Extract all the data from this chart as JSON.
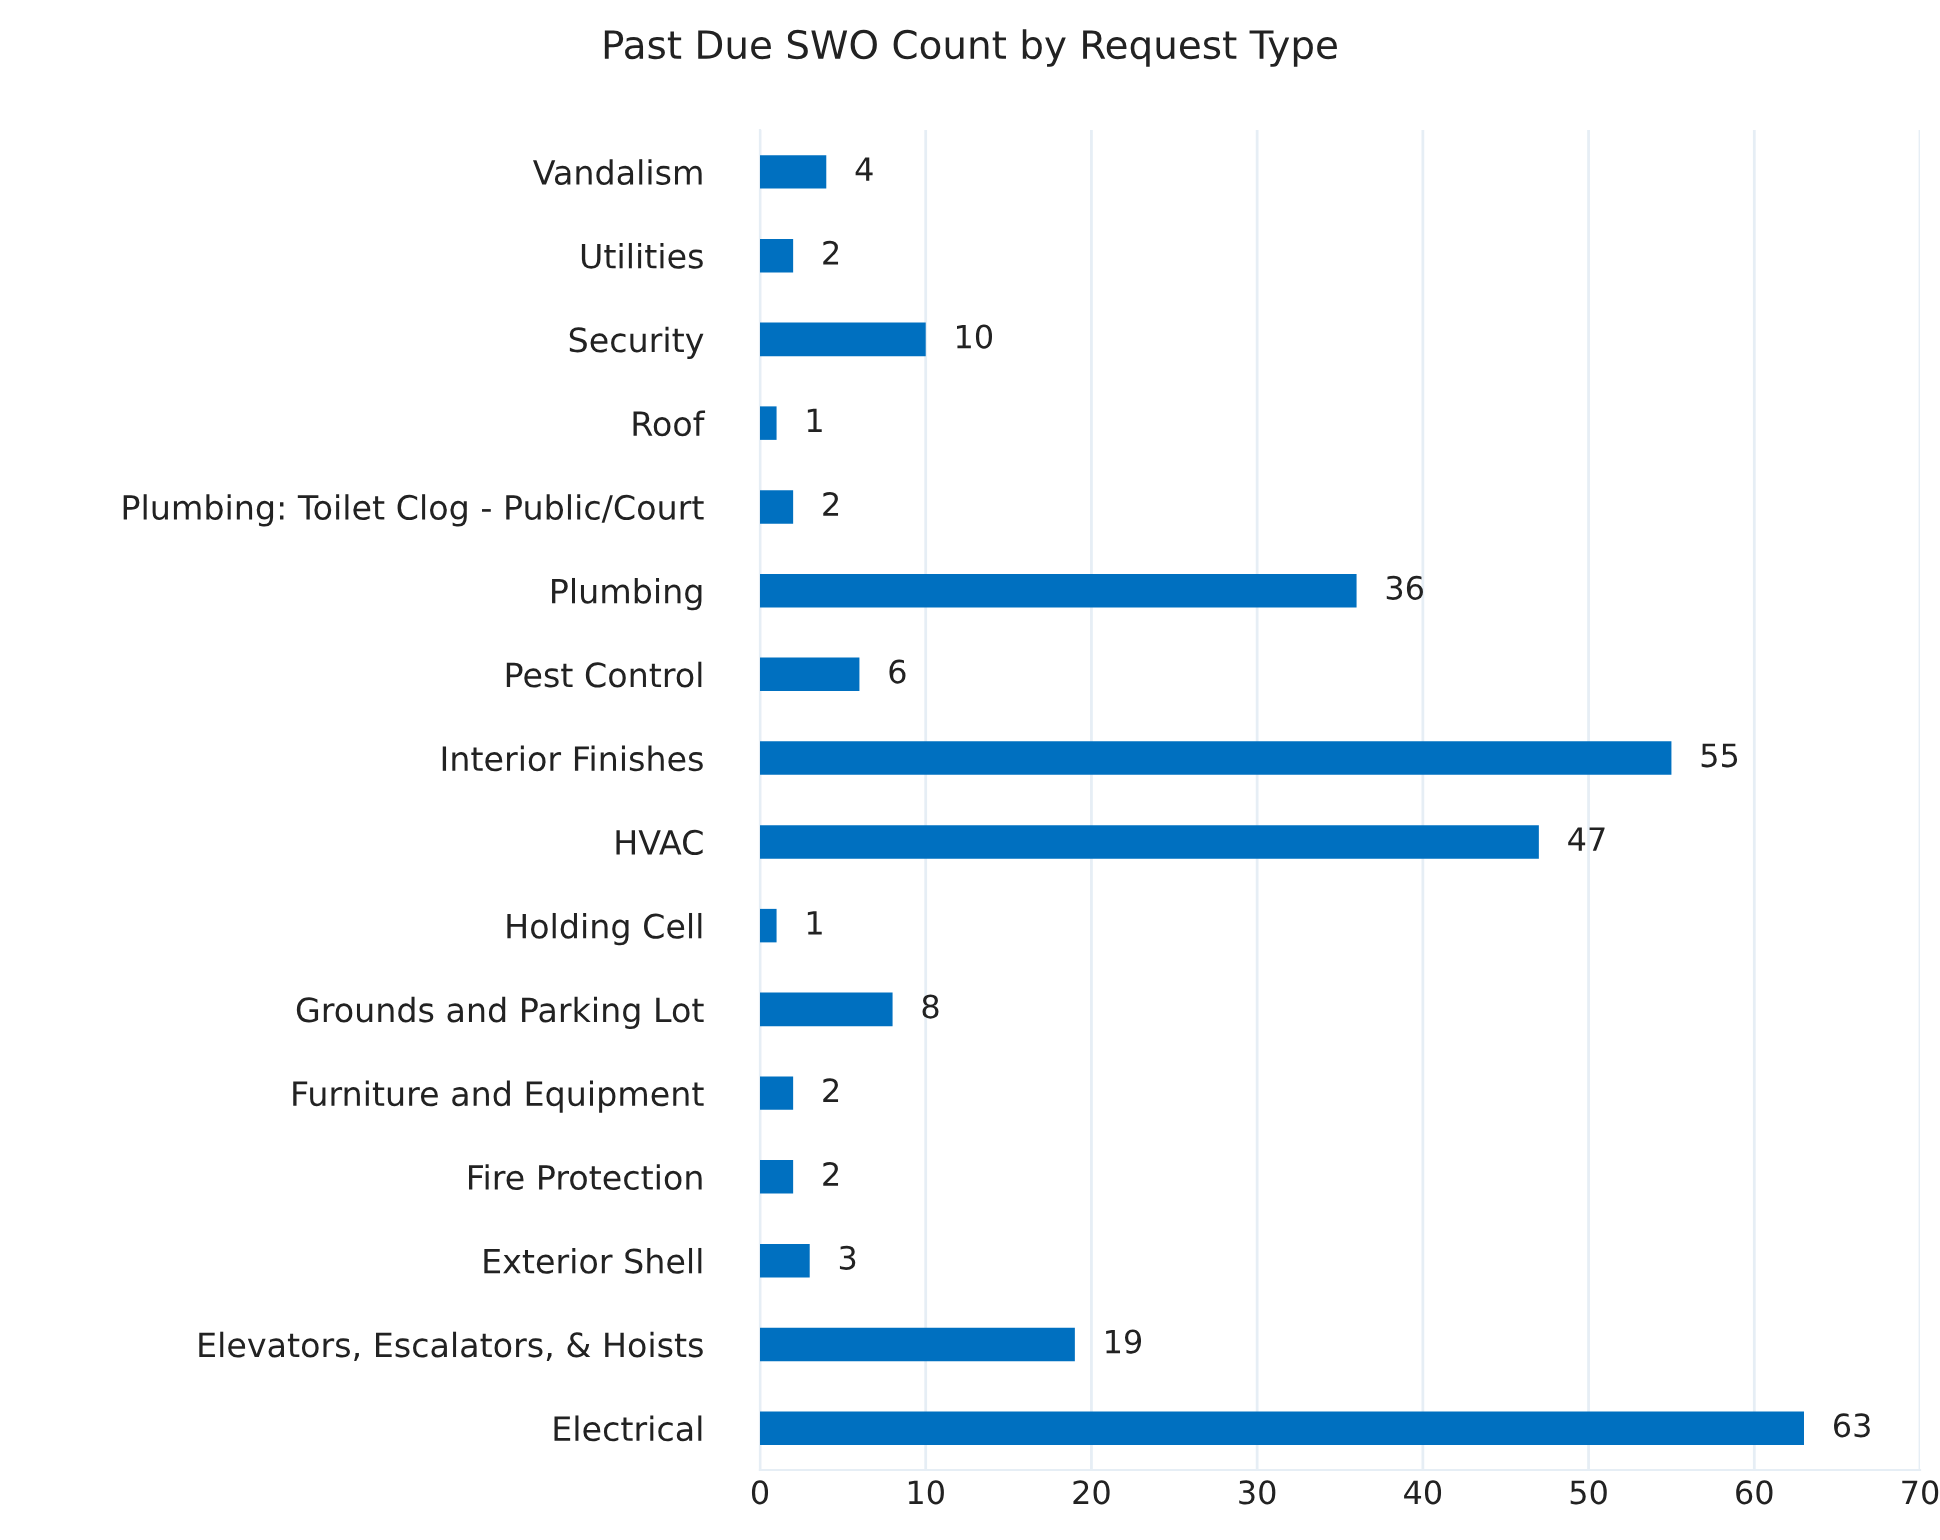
{
  "chart_data": {
    "type": "bar",
    "orientation": "horizontal",
    "title": "Past Due SWO Count by Request Type",
    "categories": [
      "Vandalism",
      "Utilities",
      "Security",
      "Roof",
      "Plumbing: Toilet Clog - Public/Court",
      "Plumbing",
      "Pest Control",
      "Interior Finishes",
      "HVAC",
      "Holding Cell",
      "Grounds and Parking Lot",
      "Furniture and Equipment",
      "Fire Protection",
      "Exterior Shell",
      "Elevators, Escalators, & Hoists",
      "Electrical"
    ],
    "values": [
      4,
      2,
      10,
      1,
      2,
      36,
      6,
      55,
      47,
      1,
      8,
      2,
      2,
      3,
      19,
      63
    ],
    "color": "#0070c0",
    "xlim": [
      0,
      70
    ],
    "xticks": [
      0,
      10,
      20,
      30,
      40,
      50,
      60,
      70
    ],
    "grid": "x",
    "data_labels": true,
    "legend": false
  }
}
